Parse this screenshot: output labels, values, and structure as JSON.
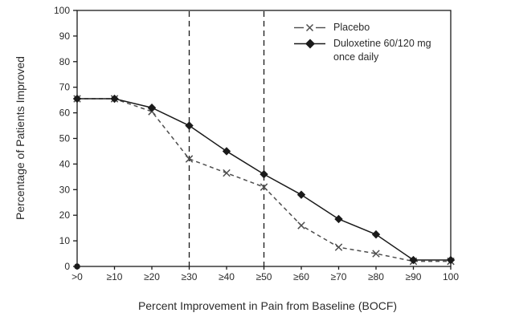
{
  "figure": {
    "background": "#ffffff",
    "axis_color": "#1a1a1a",
    "text_color": "#2b2b2b"
  },
  "legend": {
    "items": [
      {
        "id": "placebo",
        "lines": [
          "Placebo"
        ]
      },
      {
        "id": "duloxetine",
        "lines": [
          "Duloxetine 60/120 mg",
          "once daily"
        ]
      }
    ]
  },
  "chart_data": {
    "type": "line",
    "title": "",
    "xlabel": "Percent Improvement in Pain from Baseline (BOCF)",
    "ylabel": "Percentage of Patients Improved",
    "categories": [
      ">0",
      "≥10",
      "≥20",
      "≥30",
      "≥40",
      "≥50",
      "≥60",
      "≥70",
      "≥80",
      "≥90",
      "100"
    ],
    "y_ticks": [
      0,
      10,
      20,
      30,
      40,
      50,
      60,
      70,
      80,
      90,
      100
    ],
    "ylim": [
      0,
      100
    ],
    "grid": false,
    "legend_position": "top-right-inside",
    "reference_lines_x": [
      "≥30",
      "≥50"
    ],
    "origin_marker": {
      "x": ">0",
      "y": 0
    },
    "series": [
      {
        "name": "Placebo",
        "marker": "x",
        "line_style": "dashed",
        "color": "#4d4d4d",
        "values": [
          65.5,
          65.5,
          60.5,
          42,
          36.5,
          31,
          16,
          7.5,
          5,
          2,
          2
        ]
      },
      {
        "name": "Duloxetine 60/120 mg once daily",
        "marker": "diamond",
        "line_style": "solid",
        "color": "#1a1a1a",
        "values": [
          65.5,
          65.5,
          62,
          55,
          45,
          36,
          28,
          18.5,
          12.5,
          2.5,
          2.5
        ]
      }
    ]
  }
}
